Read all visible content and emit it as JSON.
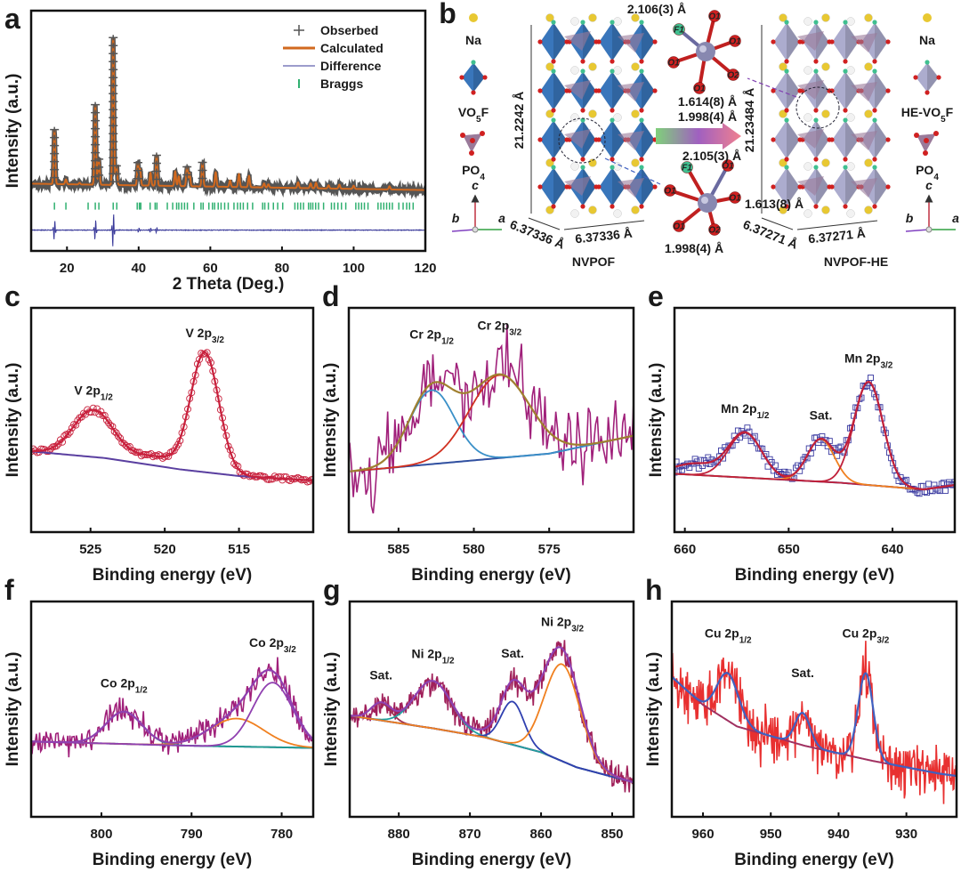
{
  "structure": {
    "panel_label": "b",
    "left_legend": {
      "na": "Na",
      "octa": "VO",
      "octa_sub1": "5",
      "octa_tail": "F",
      "tetra": "PO",
      "tetra_sub": "4"
    },
    "right_legend": {
      "na": "Na",
      "octa": "HE-VO",
      "octa_sub1": "5",
      "octa_tail": "F",
      "tetra": "PO",
      "tetra_sub": "4"
    },
    "axes": {
      "c": "c",
      "b": "b",
      "a": "a"
    },
    "nvpof": {
      "name": "NVPOF",
      "height": "21.2242 Å",
      "a1": "6.37336 Å",
      "a2": "6.37336 Å"
    },
    "nvpof_he": {
      "name": "NVPOF-HE",
      "height": "21.23484 Å",
      "a1": "6.37271 Å",
      "a2": "6.37271 Å"
    },
    "cluster_top": {
      "b1": "2.106(3) Å",
      "b2": "1.614(8) Å",
      "b3": "1.998(4) Å",
      "atoms": [
        "O1",
        "F1",
        "O1",
        "O2",
        "O1",
        "O1"
      ]
    },
    "cluster_bottom": {
      "b1": "2.105(3) Å",
      "b2": "1.613(8) Å",
      "b3": "1.998(4) Å",
      "atoms": [
        "F1",
        "O1",
        "O1",
        "O1",
        "O1",
        "O2"
      ]
    },
    "colors": {
      "vo5f": "#2f6fb8",
      "he": "#a8a8cc",
      "po4": "#9a7a9a",
      "na": "#e8c832",
      "o": "#d02020",
      "f": "#40c090"
    }
  },
  "chart_data": [
    {
      "id": "a",
      "type": "line",
      "panel_label": "a",
      "xlabel": "2 Theta (Deg.)",
      "ylabel": "Intensity (a.u.)",
      "xlim": [
        10,
        120
      ],
      "ylim": [
        -0.4,
        1.1
      ],
      "xticks": [
        20,
        40,
        60,
        80,
        100,
        120
      ],
      "legend": [
        {
          "label": "Obserbed",
          "symbol": "+",
          "color": "#555555"
        },
        {
          "label": "Calculated",
          "color": "#d2691e"
        },
        {
          "label": "Difference",
          "color": "#3a3a9a"
        },
        {
          "label": "Braggs",
          "symbol": "|",
          "color": "#30b070"
        }
      ],
      "legend_position": "top-right",
      "baseline": [
        [
          10,
          0.02
        ],
        [
          120,
          -0.02
        ]
      ],
      "peak_width": 0.22,
      "peaks": [
        [
          16.5,
          0.34
        ],
        [
          19.7,
          0.03
        ],
        [
          23.5,
          0.01
        ],
        [
          27.9,
          0.5
        ],
        [
          28.9,
          0.16
        ],
        [
          32.9,
          0.92
        ],
        [
          33.8,
          0.12
        ],
        [
          39.8,
          0.14
        ],
        [
          40.4,
          0.1
        ],
        [
          43.3,
          0.08
        ],
        [
          45.0,
          0.19
        ],
        [
          50.2,
          0.09
        ],
        [
          51.2,
          0.06
        ],
        [
          53.5,
          0.12
        ],
        [
          54.2,
          0.08
        ],
        [
          57.8,
          0.15
        ],
        [
          61.5,
          0.09
        ],
        [
          65.5,
          0.04
        ],
        [
          68.0,
          0.08
        ],
        [
          70.8,
          0.07
        ],
        [
          75.0,
          0.025
        ],
        [
          76.2,
          0.02
        ],
        [
          84.5,
          0.035
        ],
        [
          88.0,
          0.03
        ],
        [
          89.5,
          0.035
        ],
        [
          93.0,
          0.02
        ],
        [
          96.0,
          0.025
        ],
        [
          100.0,
          0.02
        ],
        [
          110.0,
          0.02
        ]
      ],
      "bragg_level": -0.12,
      "bragg_positions": [
        16.5,
        19.7,
        25.9,
        27.9,
        28.9,
        32.9,
        33.9,
        39.6,
        40.2,
        40.6,
        43.2,
        44.6,
        45.1,
        48.0,
        49.5,
        50.6,
        51.2,
        52.0,
        52.8,
        53.6,
        55.4,
        57.4,
        58.0,
        59.6,
        60.6,
        61.2,
        62.2,
        63.0,
        64.0,
        65.0,
        66.6,
        67.6,
        68.4,
        69.2,
        70.4,
        71.8,
        74.6,
        75.2,
        76.2,
        77.6,
        78.8,
        80.2,
        83.6,
        84.4,
        85.2,
        86.0,
        87.4,
        88.0,
        88.6,
        89.4,
        90.2,
        91.6,
        93.8,
        94.6,
        95.6,
        96.6,
        97.8,
        100.6,
        101.4,
        102.2,
        103.0,
        104.0,
        106.8,
        107.6,
        108.4,
        109.2,
        110.0,
        110.8,
        112.6,
        113.8,
        114.8,
        115.6,
        116.6
      ],
      "difference_level": -0.27,
      "difference_spikes": [
        [
          16.5,
          0.07
        ],
        [
          27.9,
          0.07
        ],
        [
          32.9,
          0.12
        ],
        [
          40.0,
          0.015
        ],
        [
          43.3,
          0.015
        ],
        [
          45.0,
          0.02
        ]
      ]
    },
    {
      "id": "c",
      "type": "line",
      "panel_label": "c",
      "xlabel": "Binding energy (eV)",
      "ylabel": "Intensity (a.u.)",
      "xlim": [
        529,
        510
      ],
      "ylim": [
        0,
        1
      ],
      "xticks": [
        525,
        520,
        515
      ],
      "background": [
        [
          529,
          0.36
        ],
        [
          524,
          0.33
        ],
        [
          519,
          0.28
        ],
        [
          515,
          0.25
        ],
        [
          510,
          0.23
        ]
      ],
      "peaks": [
        {
          "c": 524.8,
          "h": 0.21,
          "s": 1.35
        },
        {
          "c": 520.5,
          "h": 0.04,
          "s": 1.5
        },
        {
          "c": 517.3,
          "h": 0.53,
          "s": 0.95
        }
      ],
      "noise": 0.01,
      "step": 0.13,
      "observed_style": "circles",
      "colors": {
        "data": "#c8203c",
        "sum": "#c8203c",
        "background": "#5a3fa0",
        "components": []
      },
      "annotations": [
        {
          "text": "V 2p",
          "sub": "1/2",
          "peak": 524.8
        },
        {
          "text": "V 2p",
          "sub": "3/2",
          "peak": 517.3
        }
      ]
    },
    {
      "id": "d",
      "type": "line",
      "panel_label": "d",
      "xlabel": "Binding energy (eV)",
      "ylabel": "Intensity (a.u.)",
      "xlim": [
        588.3,
        569.4
      ],
      "ylim": [
        0,
        1
      ],
      "xticks": [
        585,
        580,
        575
      ],
      "background": [
        [
          588.3,
          0.27
        ],
        [
          580,
          0.32
        ],
        [
          575,
          0.35
        ],
        [
          569.4,
          0.43
        ]
      ],
      "peaks": [
        {
          "c": 582.8,
          "h": 0.33,
          "s": 1.5
        },
        {
          "c": 578.3,
          "h": 0.37,
          "s": 2.0
        }
      ],
      "noise": 0.12,
      "step": 0.12,
      "observed_style": "line",
      "colors": {
        "data": "#a0207a",
        "sum": "#a08030",
        "background": "#3050a0",
        "components": [
          "#3a90c8",
          "#d03020"
        ]
      },
      "annotations": [
        {
          "text": "Cr 2p",
          "sub": "1/2",
          "peak": 582.8
        },
        {
          "text": "Cr 2p",
          "sub": "3/2",
          "peak": 578.3
        }
      ]
    },
    {
      "id": "e",
      "type": "line",
      "panel_label": "e",
      "xlabel": "Binding energy (eV)",
      "ylabel": "Intensity (a.u.)",
      "xlim": [
        661,
        634
      ],
      "ylim": [
        0,
        1
      ],
      "xticks": [
        660,
        650,
        640
      ],
      "background": [
        [
          661,
          0.26
        ],
        [
          645,
          0.22
        ],
        [
          637,
          0.19
        ],
        [
          634,
          0.21
        ]
      ],
      "peaks": [
        {
          "c": 659,
          "h": 0.05,
          "s": 2
        },
        {
          "c": 654.2,
          "h": 0.2,
          "s": 1.6
        },
        {
          "c": 646.9,
          "h": 0.19,
          "s": 1.3
        },
        {
          "c": 642.3,
          "h": 0.46,
          "s": 1.4
        }
      ],
      "noise": 0.025,
      "step": 0.18,
      "observed_style": "squares",
      "colors": {
        "data": "#3a3aa0",
        "sum": "#c0203a",
        "background": "#3050b0",
        "components": [
          "",
          "#c0203a",
          "#f08020",
          "#c0203a"
        ]
      },
      "annotations": [
        {
          "text": "Mn 2p",
          "sub": "1/2",
          "peak": 654.2
        },
        {
          "text": "Sat.",
          "sub": "",
          "peak": 646.9
        },
        {
          "text": "Mn 2p",
          "sub": "3/2",
          "peak": 642.3
        }
      ]
    },
    {
      "id": "f",
      "type": "line",
      "panel_label": "f",
      "xlabel": "Binding energy (eV)",
      "ylabel": "Intensity (a.u.)",
      "xlim": [
        807.8,
        776.5
      ],
      "ylim": [
        0,
        1
      ],
      "xticks": [
        800,
        790,
        780
      ],
      "background": [
        [
          807.8,
          0.35
        ],
        [
          790,
          0.33
        ],
        [
          776.5,
          0.32
        ]
      ],
      "peaks": [
        {
          "c": 797.5,
          "h": 0.15,
          "s": 2.0
        },
        {
          "c": 785,
          "h": 0.13,
          "s": 3
        },
        {
          "c": 781,
          "h": 0.3,
          "s": 2.2
        }
      ],
      "noise": 0.045,
      "step": 0.12,
      "observed_style": "line",
      "colors": {
        "data": "#a0207a",
        "sum": "#9040b0",
        "background": "#3050a0",
        "components": [
          "#20a090",
          "#f08020",
          "#9040b0"
        ]
      },
      "annotations": [
        {
          "text": "Co 2p",
          "sub": "1/2",
          "peak": 797.5
        },
        {
          "text": "Co 2p",
          "sub": "3/2",
          "peak": 781
        }
      ]
    },
    {
      "id": "g",
      "type": "line",
      "panel_label": "g",
      "xlabel": "Binding energy (eV)",
      "ylabel": "Intensity (a.u.)",
      "xlim": [
        886.9,
        847
      ],
      "ylim": [
        0,
        1
      ],
      "xticks": [
        880,
        870,
        860,
        850
      ],
      "background": [
        [
          886.9,
          0.47
        ],
        [
          875,
          0.41
        ],
        [
          868,
          0.37
        ],
        [
          860,
          0.3
        ],
        [
          855,
          0.23
        ],
        [
          847,
          0.16
        ]
      ],
      "peaks": [
        {
          "c": 882.5,
          "h": 0.08,
          "s": 1.4
        },
        {
          "c": 875.2,
          "h": 0.22,
          "s": 2.6
        },
        {
          "c": 864,
          "h": 0.2,
          "s": 1.6
        },
        {
          "c": 857,
          "h": 0.45,
          "s": 2.5
        },
        {
          "c": 861,
          "h": 0.12,
          "s": 4
        }
      ],
      "noise": 0.04,
      "step": 0.1,
      "observed_style": "line",
      "colors": {
        "data": "#a0205a",
        "sum": "#9040b0",
        "background": "#3040a0",
        "components": [
          "#a03050",
          "#20a0a0",
          "#3040b0",
          "#f08020",
          ""
        ]
      },
      "annotations": [
        {
          "text": "Sat.",
          "sub": "",
          "peak": 882.5
        },
        {
          "text": "Ni 2p",
          "sub": "1/2",
          "peak": 875.2
        },
        {
          "text": "Sat.",
          "sub": "",
          "peak": 864
        },
        {
          "text": "Ni 2p",
          "sub": "3/2",
          "peak": 857
        }
      ]
    },
    {
      "id": "h",
      "type": "line",
      "panel_label": "h",
      "xlabel": "Binding energy (eV)",
      "ylabel": "Intensity (a.u.)",
      "xlim": [
        964.6,
        922.6
      ],
      "ylim": [
        0,
        1
      ],
      "xticks": [
        960,
        950,
        940,
        930
      ],
      "background": [
        [
          964.6,
          0.65
        ],
        [
          960,
          0.52
        ],
        [
          955,
          0.42
        ],
        [
          945,
          0.33
        ],
        [
          935,
          0.26
        ],
        [
          925,
          0.2
        ],
        [
          922.6,
          0.19
        ]
      ],
      "peaks": [
        {
          "c": 956.3,
          "h": 0.22,
          "s": 1.6
        },
        {
          "c": 945.3,
          "h": 0.15,
          "s": 1.1
        },
        {
          "c": 936,
          "h": 0.4,
          "s": 1.1
        }
      ],
      "noise": 0.09,
      "step": 0.1,
      "observed_style": "line",
      "colors": {
        "data": "#e83030",
        "sum": "#4060c0",
        "background": "#a03060",
        "components": []
      },
      "annotations": [
        {
          "text": "Cu 2p",
          "sub": "1/2",
          "peak": 956.3
        },
        {
          "text": "Sat.",
          "sub": "",
          "peak": 945.3
        },
        {
          "text": "Cu 2p",
          "sub": "3/2",
          "peak": 936
        }
      ]
    }
  ]
}
